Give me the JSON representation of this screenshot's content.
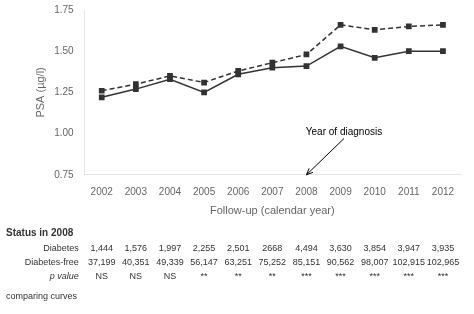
{
  "chart_data": {
    "type": "line",
    "xlabel": "Follow-up (calendar year)",
    "ylabel": "PSA (µg/l)",
    "x": [
      2002,
      2003,
      2004,
      2005,
      2006,
      2007,
      2008,
      2009,
      2010,
      2011,
      2012
    ],
    "series": [
      {
        "name": "Diabetes-free",
        "color": "#333333",
        "line_style": "dashed",
        "marker": "square",
        "values": [
          1.26,
          1.3,
          1.35,
          1.31,
          1.38,
          1.43,
          1.48,
          1.66,
          1.63,
          1.65,
          1.66
        ]
      },
      {
        "name": "Diabetes",
        "color": "#333333",
        "line_style": "solid",
        "marker": "square",
        "values": [
          1.22,
          1.27,
          1.33,
          1.25,
          1.36,
          1.4,
          1.41,
          1.53,
          1.46,
          1.5,
          1.5
        ]
      }
    ],
    "xlim": [
      2001.5,
      2012.5
    ],
    "xticks": [
      2002,
      2003,
      2004,
      2005,
      2006,
      2007,
      2008,
      2009,
      2010,
      2011,
      2012
    ],
    "ylim": [
      0.75,
      1.75
    ],
    "yticks": [
      0.75,
      {
        "value": 1.0,
        "label": "1.00"
      },
      1.25,
      {
        "value": 1.5,
        "label": "1.50"
      },
      1.75
    ],
    "grid": false,
    "annotations": [
      {
        "text": "Year of diagnosis",
        "x": 2008,
        "y": 0.75,
        "text_x": 2009.1,
        "text_y": 0.97
      }
    ],
    "table": {
      "title": "Status in 2008",
      "rows": [
        {
          "label": "Diabetes",
          "values": [
            "1,444",
            "1,576",
            "1,997",
            "2,255",
            "2,501",
            "2668",
            "4,494",
            "3,630",
            "3,854",
            "3,947",
            "3,935"
          ]
        },
        {
          "label": "Diabetes-free",
          "values": [
            "37,199",
            "40,351",
            "49,339",
            "56,147",
            "63,251",
            "75,252",
            "85,151",
            "90,562",
            "98,007",
            "102,915",
            "102,965"
          ]
        },
        {
          "label": "p value",
          "values": [
            "NS",
            "NS",
            "NS",
            "**",
            "**",
            "**",
            "***",
            "***",
            "***",
            "***",
            "***"
          ]
        }
      ],
      "note": "comparing curves"
    }
  }
}
